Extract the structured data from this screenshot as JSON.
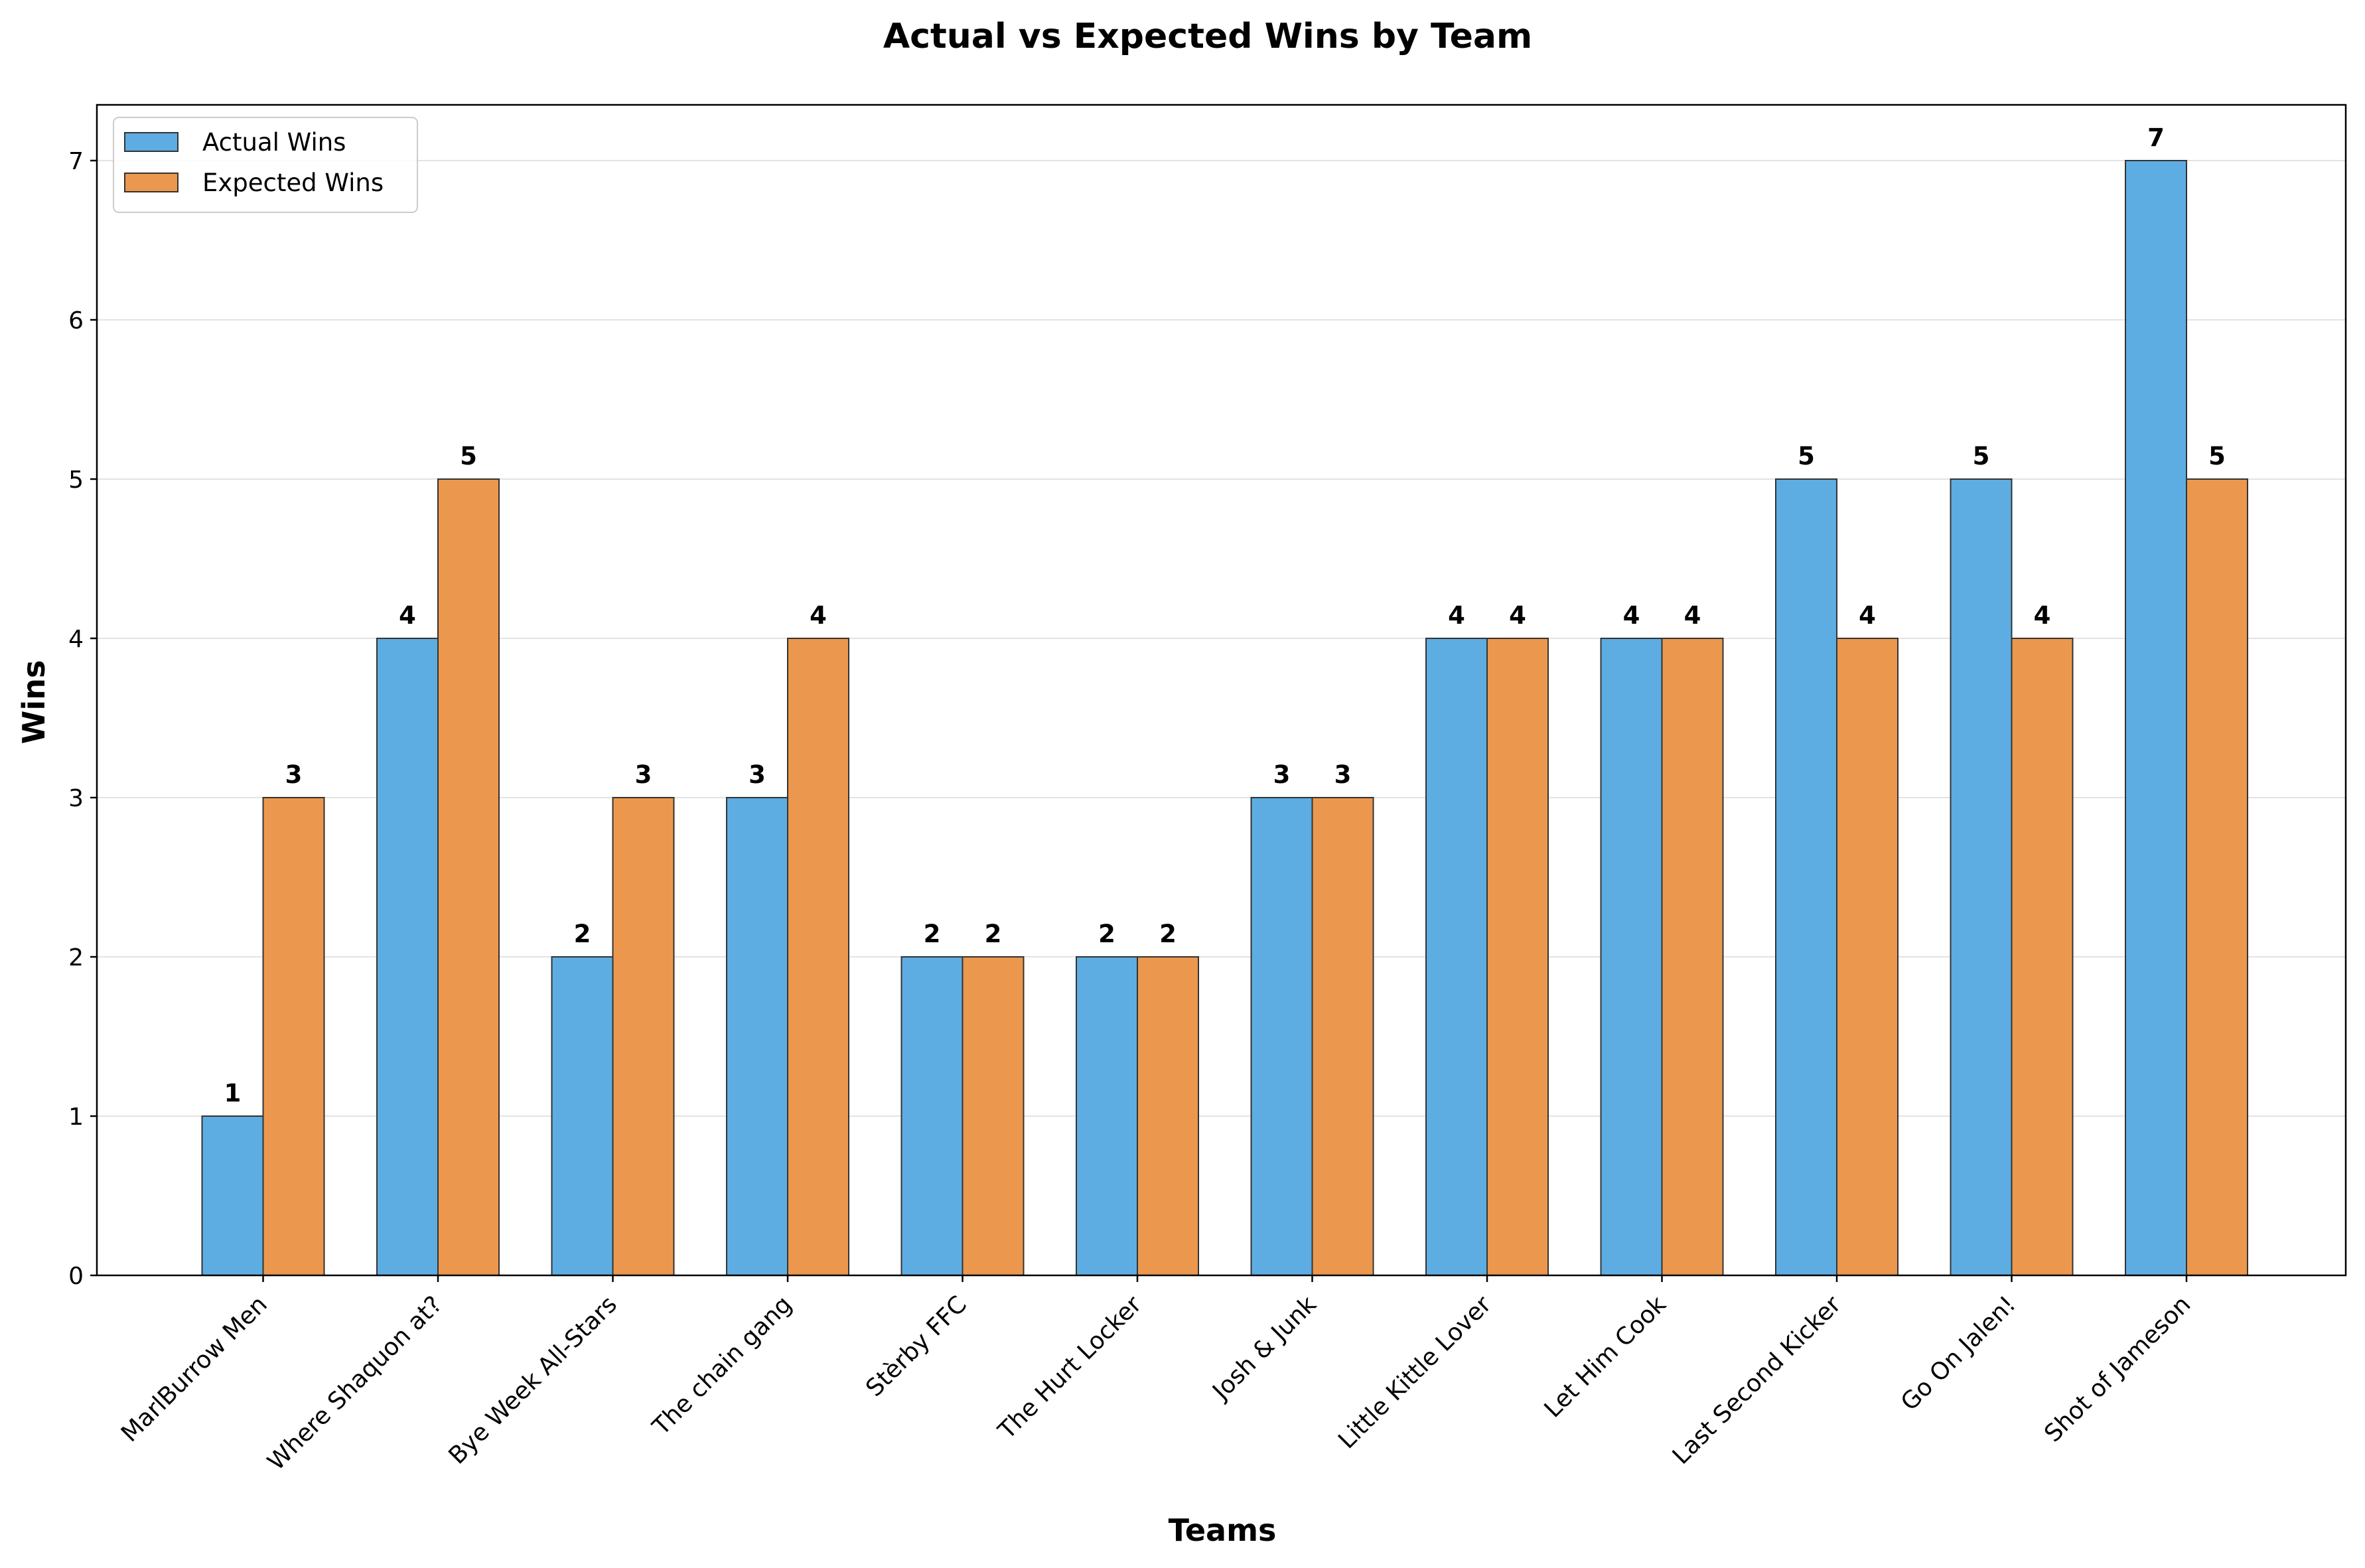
{
  "chart_data": {
    "type": "bar",
    "title": "Actual vs Expected Wins by Team",
    "xlabel": "Teams",
    "ylabel": "Wins",
    "ylim": [
      0,
      7.35
    ],
    "yticks": [
      "0",
      "1",
      "2",
      "3",
      "4",
      "5",
      "6",
      "7"
    ],
    "grid": "horizontal",
    "legend_position": "top-left",
    "categories": [
      "MarlBurrow Men",
      "Where Shaquon at?",
      "Bye Week All-Stars",
      "The chain gang",
      "Stèrby FFC",
      "The Hurt Locker",
      "Josh & Junk",
      "Little Kittle Lover",
      "Let Him Cook",
      "Last Second Kicker",
      "Go On Jalen!",
      "Shot of Jameson"
    ],
    "series": [
      {
        "name": "Actual Wins",
        "color": "#5dade2",
        "values": [
          1,
          4,
          2,
          3,
          2,
          2,
          3,
          4,
          4,
          5,
          5,
          7
        ]
      },
      {
        "name": "Expected Wins",
        "color": "#eb984e",
        "values": [
          3,
          5,
          3,
          4,
          2,
          2,
          3,
          4,
          4,
          4,
          4,
          5
        ]
      }
    ]
  }
}
